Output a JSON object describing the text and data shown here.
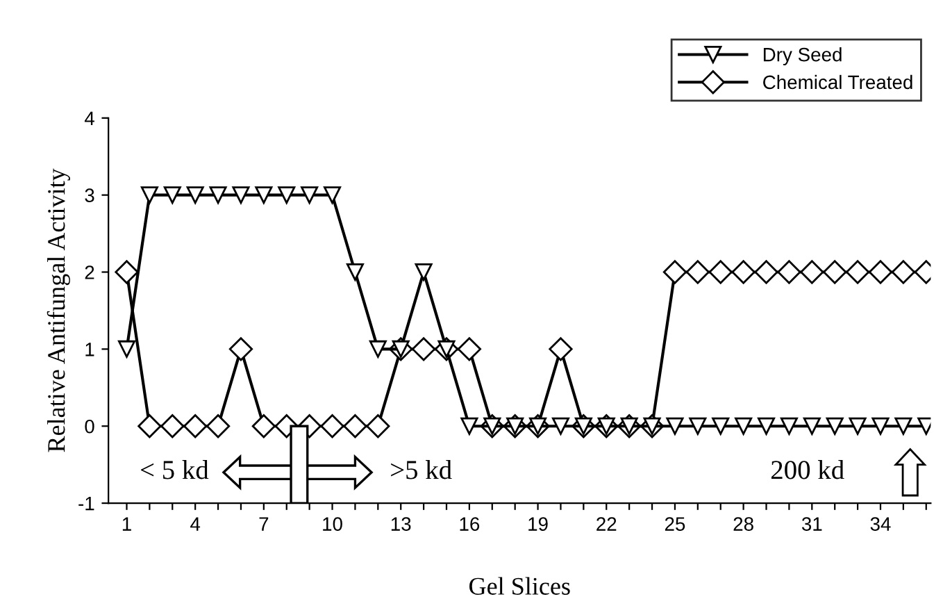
{
  "chart_data": {
    "type": "line",
    "xlabel": "Gel Slices",
    "ylabel": "Relative Antifungal Activity",
    "x": [
      1,
      2,
      3,
      4,
      5,
      6,
      7,
      8,
      9,
      10,
      11,
      12,
      13,
      14,
      15,
      16,
      17,
      18,
      19,
      20,
      21,
      22,
      23,
      24,
      25,
      26,
      27,
      28,
      29,
      30,
      31,
      32,
      33,
      34,
      35,
      36
    ],
    "series": [
      {
        "name": "Dry Seed",
        "color": "#000000",
        "marker": "triangle",
        "values": [
          1,
          3,
          3,
          3,
          3,
          3,
          3,
          3,
          3,
          3,
          2,
          1,
          1,
          2,
          1,
          0,
          0,
          0,
          0,
          0,
          0,
          0,
          0,
          0,
          0,
          0,
          0,
          0,
          0,
          0,
          0,
          0,
          0,
          0,
          0,
          0
        ]
      },
      {
        "name": "Chemical Treated",
        "color": "#000000",
        "marker": "diamond",
        "values": [
          2,
          0,
          0,
          0,
          0,
          1,
          0,
          0,
          0,
          0,
          0,
          0,
          1,
          1,
          1,
          1,
          0,
          0,
          0,
          1,
          0,
          0,
          0,
          0,
          2,
          2,
          2,
          2,
          2,
          2,
          2,
          2,
          2,
          2,
          2,
          2
        ]
      }
    ],
    "xlim": [
      0.2,
      36.2
    ],
    "xticks": [
      1,
      {
        "value": 2,
        "label": null
      },
      {
        "value": 3,
        "label": null
      },
      4,
      {
        "value": 5,
        "label": null
      },
      {
        "value": 6,
        "label": null
      },
      7,
      {
        "value": 8,
        "label": null
      },
      {
        "value": 9,
        "label": null
      },
      10,
      {
        "value": 11,
        "label": null
      },
      {
        "value": 12,
        "label": null
      },
      13,
      {
        "value": 14,
        "label": null
      },
      {
        "value": 15,
        "label": null
      },
      16,
      {
        "value": 17,
        "label": null
      },
      {
        "value": 18,
        "label": null
      },
      19,
      {
        "value": 20,
        "label": null
      },
      {
        "value": 21,
        "label": null
      },
      22,
      {
        "value": 23,
        "label": null
      },
      {
        "value": 24,
        "label": null
      },
      25,
      {
        "value": 26,
        "label": null
      },
      {
        "value": 27,
        "label": null
      },
      28,
      {
        "value": 29,
        "label": null
      },
      {
        "value": 30,
        "label": null
      },
      31,
      {
        "value": 32,
        "label": null
      },
      {
        "value": 33,
        "label": null
      },
      34,
      {
        "value": 35,
        "label": null
      },
      {
        "value": 36,
        "label": null
      }
    ],
    "ylim": [
      -1,
      4
    ],
    "yticks": [
      -1,
      0,
      1,
      2,
      3,
      4
    ],
    "annotations": [
      "< 5 kd",
      ">5 kd",
      "200 kd"
    ],
    "legend": "top right",
    "grid": false,
    "line_style": "solid"
  }
}
